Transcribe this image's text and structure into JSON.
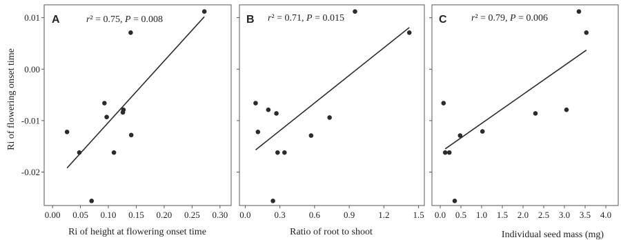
{
  "figure": {
    "y_axis_title": "Ri of flowering onset time"
  },
  "chart_data": [
    {
      "type": "scatter",
      "panel": "A",
      "stat_r2": "r² = 0.75, ",
      "stat_p": "P = 0.008",
      "xlabel": "Ri of height at flowering onset time",
      "ylabel": "Ri of flowering onset time",
      "xlim": [
        -0.015,
        0.32
      ],
      "ylim": [
        -0.0265,
        0.0125
      ],
      "x_ticks": [
        0.0,
        0.05,
        0.1,
        0.15,
        0.2,
        0.25,
        0.3
      ],
      "x_tick_labels": [
        "0.00",
        "0.05",
        "0.10",
        "0.15",
        "0.20",
        "0.25",
        "0.30"
      ],
      "y_ticks": [
        0.01,
        0.0,
        -0.01,
        -0.02
      ],
      "y_tick_labels": [
        "0.01",
        "0.00",
        "-0.01",
        "-0.02"
      ],
      "points": [
        {
          "x": 0.272,
          "y": 0.0112
        },
        {
          "x": 0.14,
          "y": 0.0071
        },
        {
          "x": 0.093,
          "y": -0.0066
        },
        {
          "x": 0.127,
          "y": -0.0079
        },
        {
          "x": 0.126,
          "y": -0.0084
        },
        {
          "x": 0.097,
          "y": -0.0093
        },
        {
          "x": 0.026,
          "y": -0.0122
        },
        {
          "x": 0.141,
          "y": -0.0128
        },
        {
          "x": 0.048,
          "y": -0.0162
        },
        {
          "x": 0.11,
          "y": -0.0162
        },
        {
          "x": 0.07,
          "y": -0.0256
        }
      ],
      "fit": {
        "x": [
          0.026,
          0.272
        ],
        "y": [
          -0.0192,
          0.0102
        ]
      },
      "grid": false
    },
    {
      "type": "scatter",
      "panel": "B",
      "stat_r2": "r² = 0.71, ",
      "stat_p": "P = 0.015",
      "xlabel": "Ratio of root to shoot",
      "xlim": [
        -0.05,
        1.55
      ],
      "ylim": [
        -0.0265,
        0.0125
      ],
      "x_ticks": [
        0.0,
        0.3,
        0.6,
        0.9,
        1.2,
        1.5
      ],
      "x_tick_labels": [
        "0.0",
        "0.3",
        "0.6",
        "0.9",
        "1.2",
        "1.5"
      ],
      "y_ticks": [
        0.01,
        0.0,
        -0.01,
        -0.02
      ],
      "points": [
        {
          "x": 0.95,
          "y": 0.0112
        },
        {
          "x": 1.42,
          "y": 0.0071
        },
        {
          "x": 0.09,
          "y": -0.0066
        },
        {
          "x": 0.2,
          "y": -0.0079
        },
        {
          "x": 0.27,
          "y": -0.0086
        },
        {
          "x": 0.73,
          "y": -0.0094
        },
        {
          "x": 0.11,
          "y": -0.0122
        },
        {
          "x": 0.57,
          "y": -0.0129
        },
        {
          "x": 0.28,
          "y": -0.0162
        },
        {
          "x": 0.34,
          "y": -0.0162
        },
        {
          "x": 0.24,
          "y": -0.0256
        }
      ],
      "fit": {
        "x": [
          0.09,
          1.42
        ],
        "y": [
          -0.0157,
          0.0081
        ]
      },
      "grid": false
    },
    {
      "type": "scatter",
      "panel": "C",
      "stat_r2": "r² = 0.79, ",
      "stat_p": "P = 0.006",
      "xlabel": "Individual seed mass (mg)",
      "xlim": [
        -0.2,
        4.3
      ],
      "ylim": [
        -0.0265,
        0.0125
      ],
      "x_ticks": [
        0.0,
        0.5,
        1.0,
        1.5,
        2.0,
        2.5,
        3.0,
        3.5,
        4.0
      ],
      "x_tick_labels": [
        "0.0",
        "0.5",
        "1.0",
        "1.5",
        "2.0",
        "2.5",
        "3.0",
        "3.5",
        "4.0"
      ],
      "y_ticks": [
        0.01,
        0.0,
        -0.01,
        -0.02
      ],
      "points": [
        {
          "x": 3.35,
          "y": 0.0112
        },
        {
          "x": 3.53,
          "y": 0.0071
        },
        {
          "x": 0.08,
          "y": -0.0066
        },
        {
          "x": 3.05,
          "y": -0.0079
        },
        {
          "x": 2.3,
          "y": -0.0086
        },
        {
          "x": 1.02,
          "y": -0.0121
        },
        {
          "x": 0.48,
          "y": -0.0129
        },
        {
          "x": 0.12,
          "y": -0.0162
        },
        {
          "x": 0.22,
          "y": -0.0162
        },
        {
          "x": 0.35,
          "y": -0.0256
        }
      ],
      "fit": {
        "x": [
          0.12,
          3.53
        ],
        "y": [
          -0.0155,
          0.0037
        ]
      },
      "grid": false
    }
  ]
}
